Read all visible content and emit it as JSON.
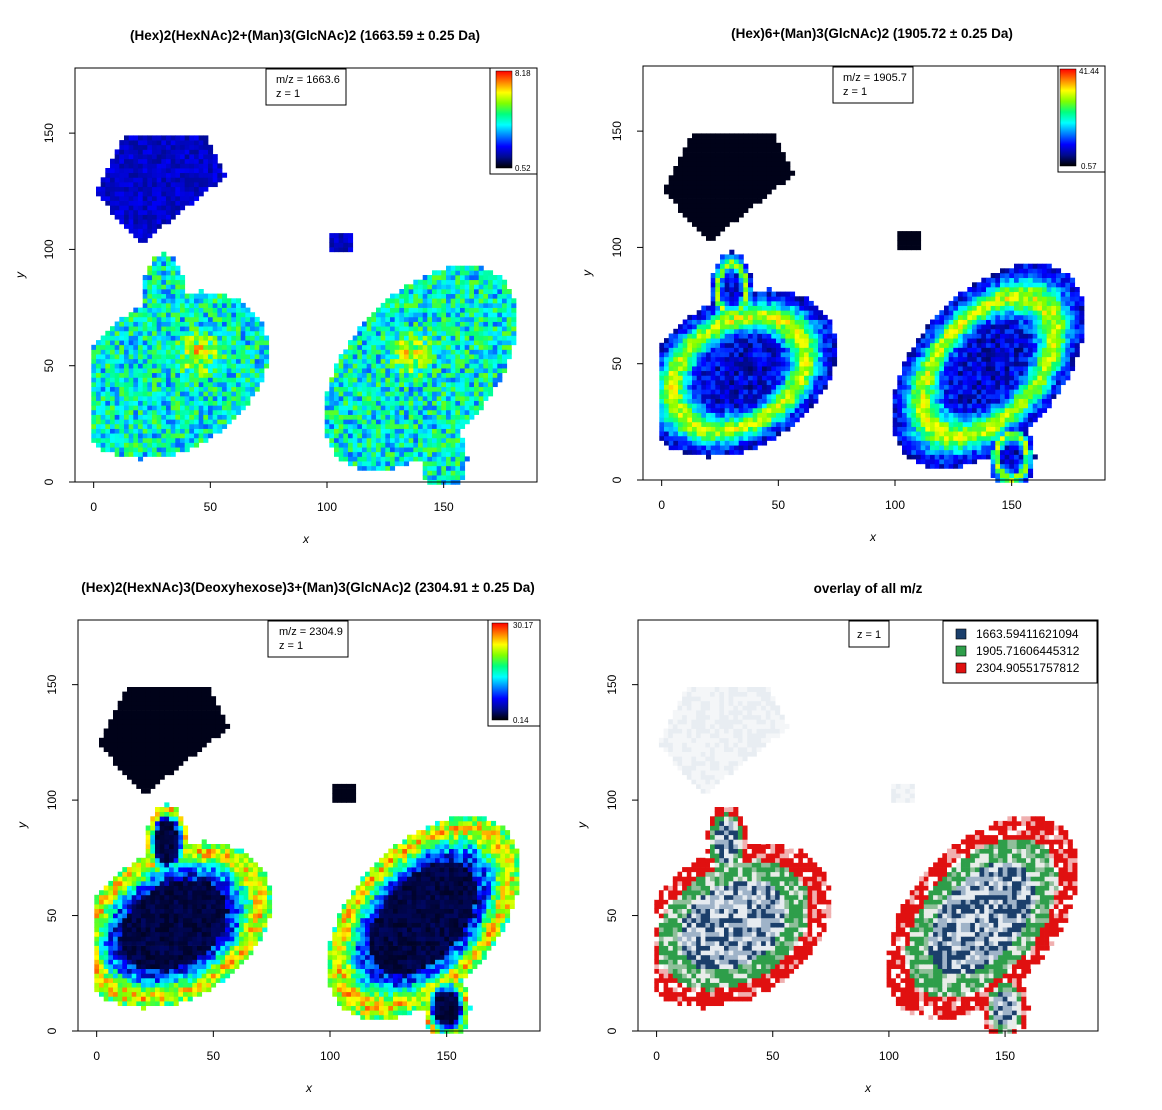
{
  "figure": {
    "layout": "2x2 grid",
    "colors": {
      "jet_scale": [
        "#000000",
        "#000a8c",
        "#0000ff",
        "#007fff",
        "#00ffff",
        "#00ff7f",
        "#7fff00",
        "#ffff00",
        "#ff7f00",
        "#ff0000"
      ],
      "overlay_blue": "#1b3f6b",
      "overlay_green": "#2e9e4a",
      "overlay_red": "#e01010"
    }
  },
  "chart_data": [
    {
      "type": "heatmap",
      "title": "(Hex)2(HexNAc)2+(Man)3(GlcNAc)2 (1663.59 ± 0.25 Da)",
      "xlabel": "x",
      "ylabel": "y",
      "xlim": [
        -8,
        190
      ],
      "ylim": [
        0,
        178
      ],
      "xticks": [
        0,
        50,
        100,
        150
      ],
      "yticks": [
        0,
        50,
        100,
        150
      ],
      "grid": false,
      "info_box": {
        "line1": "m/z = 1663.6",
        "line2": "z = 1"
      },
      "colorbar": {
        "min": 0.52,
        "max": 8.18,
        "min_label": "0.52",
        "max_label": "8.18",
        "position": "top-right"
      },
      "intensity_profile": "uniform"
    },
    {
      "type": "heatmap",
      "title": "(Hex)6+(Man)3(GlcNAc)2 (1905.72 ± 0.25 Da)",
      "xlabel": "x",
      "ylabel": "y",
      "xlim": [
        -8,
        190
      ],
      "ylim": [
        0,
        178
      ],
      "xticks": [
        0,
        50,
        100,
        150
      ],
      "yticks": [
        0,
        50,
        100,
        150
      ],
      "grid": false,
      "info_box": {
        "line1": "m/z = 1905.7",
        "line2": "z = 1"
      },
      "colorbar": {
        "min": 0.57,
        "max": 41.44,
        "min_label": "0.57",
        "max_label": "41.44",
        "position": "top-right"
      },
      "intensity_profile": "middle-ring"
    },
    {
      "type": "heatmap",
      "title": "(Hex)2(HexNAc)3(Deoxyhexose)3+(Man)3(GlcNAc)2 (2304.91 ± 0.25 Da)",
      "xlabel": "x",
      "ylabel": "y",
      "xlim": [
        -8,
        190
      ],
      "ylim": [
        0,
        178
      ],
      "xticks": [
        0,
        50,
        100,
        150
      ],
      "yticks": [
        0,
        50,
        100,
        150
      ],
      "grid": false,
      "info_box": {
        "line1": "m/z = 2304.9",
        "line2": "z = 1"
      },
      "colorbar": {
        "min": 0.14,
        "max": 30.17,
        "min_label": "0.14",
        "max_label": "30.17",
        "position": "top-right"
      },
      "intensity_profile": "outer-ring"
    },
    {
      "type": "heatmap",
      "title": "overlay of all m/z",
      "xlabel": "x",
      "ylabel": "y",
      "xlim": [
        -8,
        190
      ],
      "ylim": [
        0,
        178
      ],
      "xticks": [
        0,
        50,
        100,
        150
      ],
      "yticks": [
        0,
        50,
        100,
        150
      ],
      "grid": false,
      "info_box": {
        "line1": "z = 1"
      },
      "legend": {
        "position": "top-right",
        "entries": [
          {
            "label": "1663.59411621094",
            "color": "#1b3f6b"
          },
          {
            "label": "1905.71606445312",
            "color": "#2e9e4a"
          },
          {
            "label": "2304.90551757812",
            "color": "#e01010"
          }
        ]
      },
      "intensity_profile": "overlay"
    }
  ]
}
